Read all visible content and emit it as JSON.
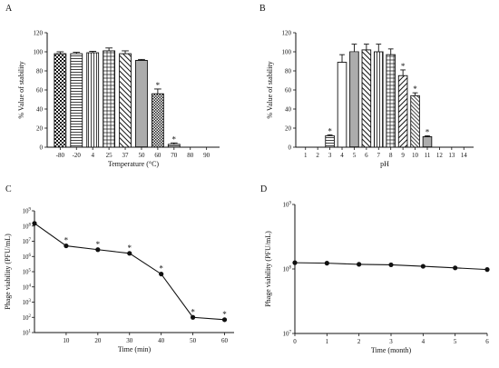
{
  "chart_data": [
    {
      "panel": "A",
      "type": "bar",
      "xlabel": "Temperature (°C)",
      "ylabel": "% Value of stability",
      "ylim": [
        0,
        120
      ],
      "yticks": [
        0,
        20,
        40,
        60,
        80,
        100,
        120
      ],
      "categories": [
        "-80",
        "-20",
        "4",
        "25",
        "37",
        "50",
        "60",
        "70",
        "80",
        "90"
      ],
      "values": [
        98,
        98,
        99,
        101,
        98,
        91,
        56,
        3,
        0,
        0
      ],
      "errors": [
        2,
        1.5,
        1.5,
        3,
        3,
        1,
        5,
        1.5,
        0,
        0
      ],
      "significant": [
        false,
        false,
        false,
        false,
        false,
        false,
        true,
        true,
        false,
        false
      ],
      "patterns": [
        "checker",
        "hlines",
        "vlines",
        "grid",
        "diag",
        "hlines-dense",
        "dense-checker",
        "hlines",
        "none",
        "none"
      ],
      "grid": false
    },
    {
      "panel": "B",
      "type": "bar",
      "xlabel": "pH",
      "ylabel": "% Value of stability",
      "ylim": [
        0,
        120
      ],
      "yticks": [
        0,
        20,
        40,
        60,
        80,
        100,
        120
      ],
      "categories": [
        "1",
        "2",
        "3",
        "4",
        "5",
        "6",
        "7",
        "8",
        "9",
        "10",
        "11",
        "12",
        "13",
        "14"
      ],
      "values": [
        0,
        0,
        12,
        89,
        100,
        102,
        100,
        97,
        75,
        54,
        11,
        0,
        0,
        0
      ],
      "errors": [
        0,
        0,
        1,
        8,
        8,
        6,
        8,
        6,
        6,
        3,
        1,
        0,
        0,
        0
      ],
      "significant": [
        false,
        false,
        true,
        false,
        false,
        false,
        false,
        false,
        true,
        true,
        true,
        false,
        false,
        false
      ],
      "patterns": [
        "none",
        "none",
        "hlines",
        "plain",
        "hlines-dense",
        "diag",
        "vlines",
        "grid",
        "diag-back",
        "diag-dense",
        "hlines-dense",
        "none",
        "none",
        "none"
      ],
      "grid": false
    },
    {
      "panel": "C",
      "type": "line",
      "xlabel": "Time (min)",
      "ylabel": "Phage viability (PFU/mL)",
      "yscale": "log",
      "ylim": [
        10,
        1000000000
      ],
      "xlim": [
        0,
        63
      ],
      "xticks": [
        10,
        20,
        30,
        40,
        50,
        60
      ],
      "yticks": [
        10,
        100,
        1000,
        10000,
        100000,
        1000000,
        10000000,
        100000000,
        1000000000
      ],
      "ytick_labels": [
        {
          "base": "10",
          "exp": "1"
        },
        {
          "base": "10",
          "exp": "2"
        },
        {
          "base": "10",
          "exp": "3"
        },
        {
          "base": "10",
          "exp": "4"
        },
        {
          "base": "10",
          "exp": "5"
        },
        {
          "base": "10",
          "exp": "6"
        },
        {
          "base": "10",
          "exp": "7"
        },
        {
          "base": "10",
          "exp": "8"
        },
        {
          "base": "10",
          "exp": "9"
        }
      ],
      "x": [
        0,
        10,
        20,
        30,
        40,
        50,
        60
      ],
      "y": [
        150000000,
        5000000,
        2800000,
        1600000,
        70000,
        100,
        70
      ],
      "significant": [
        false,
        true,
        true,
        true,
        true,
        true,
        true
      ],
      "grid": false
    },
    {
      "panel": "D",
      "type": "line",
      "xlabel": "Time (month)",
      "ylabel": "Phage viability (PFU/mL)",
      "yscale": "log",
      "ylim": [
        10000000,
        1000000000
      ],
      "xlim": [
        0,
        6
      ],
      "xticks": [
        0,
        1,
        2,
        3,
        4,
        5,
        6
      ],
      "yticks": [
        10000000,
        100000000,
        1000000000
      ],
      "ytick_labels": [
        {
          "base": "10",
          "exp": "7"
        },
        {
          "base": "10",
          "exp": "8"
        },
        {
          "base": "10",
          "exp": "9"
        }
      ],
      "x": [
        0,
        1,
        2,
        3,
        4,
        5,
        6
      ],
      "y": [
        125000000,
        123000000,
        118000000,
        116000000,
        110000000,
        104000000,
        98000000
      ],
      "significant": [
        false,
        false,
        false,
        false,
        false,
        false,
        false
      ],
      "grid": false
    }
  ],
  "annotations": {
    "significance_mark": "*"
  }
}
